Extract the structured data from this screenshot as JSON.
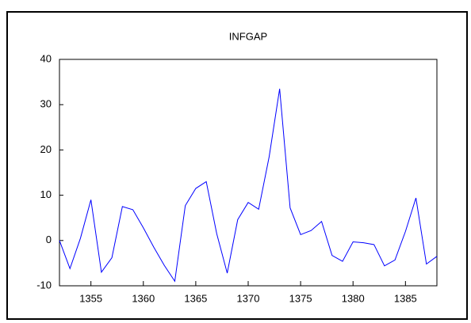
{
  "chart_data": {
    "type": "line",
    "title": "INFGAP",
    "x": [
      1352,
      1353,
      1354,
      1355,
      1356,
      1357,
      1358,
      1359,
      1360,
      1361,
      1362,
      1363,
      1364,
      1365,
      1366,
      1367,
      1368,
      1369,
      1370,
      1371,
      1372,
      1373,
      1374,
      1375,
      1376,
      1377,
      1378,
      1379,
      1380,
      1381,
      1382,
      1383,
      1384,
      1385,
      1386,
      1387,
      1388
    ],
    "series": [
      {
        "name": "INFGAP",
        "color": "#0000ff",
        "values": [
          0,
          -6.2,
          0.5,
          9,
          -7,
          -3.8,
          7.5,
          6.8,
          2.8,
          -1.5,
          -5.5,
          -9,
          7.7,
          11.5,
          13,
          1.5,
          -7.2,
          4.6,
          8.4,
          6.9,
          18.5,
          33.5,
          7.2,
          1.3,
          2.2,
          4.2,
          -3.3,
          -4.6,
          -0.3,
          -0.5,
          -0.9,
          -5.6,
          -4.3,
          2,
          9.4,
          -5.2,
          -3.5
        ]
      }
    ],
    "xlim": [
      1352,
      1388
    ],
    "xticks": [
      1355,
      1360,
      1365,
      1370,
      1375,
      1380,
      1385
    ],
    "ylim": [
      -10,
      40
    ],
    "yticks": [
      -10,
      0,
      10,
      20,
      30,
      40
    ],
    "grid": false
  }
}
